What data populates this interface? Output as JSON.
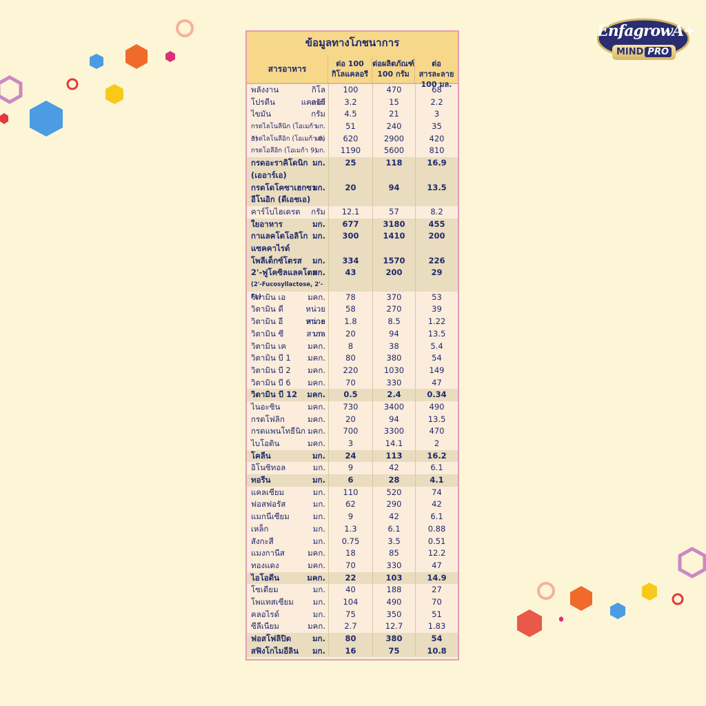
{
  "brand": {
    "logo_main": "EnfagrowA+",
    "logo_mind": "MIND",
    "logo_pro": "PRO"
  },
  "colors": {
    "background": "#fcf5d6",
    "table_header": "#f7d88a",
    "table_border": "#e79bb4",
    "text": "#1f2a6b"
  },
  "table": {
    "title": "ข้อมูลทางโภชนาการ",
    "headers": {
      "col0": "สารอาหาร",
      "col1_line1": "ต่อ 100",
      "col1_line2": "กิโลแคลอรี",
      "col2_line1": "ต่อผลิตภัณฑ์",
      "col2_line2": "100 กรัม",
      "col3_line1": "ต่อสารละลาย",
      "col3_line2": "100 มล."
    },
    "rows": [
      {
        "name": "พลังงาน",
        "unit": "กิโลแคลอรี",
        "v1": "100",
        "v2": "470",
        "v3": "68",
        "bold": false
      },
      {
        "name": "โปรตีน",
        "unit": "กรัม",
        "v1": "3.2",
        "v2": "15",
        "v3": "2.2",
        "bold": false
      },
      {
        "name": "ไขมัน",
        "unit": "กรัม",
        "v1": "4.5",
        "v2": "21",
        "v3": "3",
        "bold": false
      },
      {
        "name": "กรดไลโนลีนิก (โอเมก้า 3)",
        "unit": "มก.",
        "v1": "51",
        "v2": "240",
        "v3": "35",
        "bold": false,
        "small": true
      },
      {
        "name": "กรดไลโนลีอิก (โอเมก้า 6)",
        "unit": "มก.",
        "v1": "620",
        "v2": "2900",
        "v3": "420",
        "bold": false,
        "small": true
      },
      {
        "name": "กรดโอลีอิก (โอเมก้า 9)",
        "unit": "มก.",
        "v1": "1190",
        "v2": "5600",
        "v3": "810",
        "bold": false,
        "small": true
      },
      {
        "name": "กรดอะราคิโดนิก",
        "name2": "(เออาร์เอ)",
        "unit": "มก.",
        "v1": "25",
        "v2": "118",
        "v3": "16.9",
        "bold": true
      },
      {
        "name": "กรดโดโคซาเฮกซา",
        "name2": "อีโนอิก (ดีเอชเอ)",
        "unit": "มก.",
        "v1": "20",
        "v2": "94",
        "v3": "13.5",
        "bold": true
      },
      {
        "name": "คาร์โบไฮเดรต",
        "unit": "กรัม",
        "v1": "12.1",
        "v2": "57",
        "v3": "8.2",
        "bold": false
      },
      {
        "name": "ใยอาหาร",
        "unit": "มก.",
        "v1": "677",
        "v2": "3180",
        "v3": "455",
        "bold": true
      },
      {
        "name": "กาแลคโตโอลิโก",
        "name2": "แซคคาไรด์",
        "unit": "มก.",
        "v1": "300",
        "v2": "1410",
        "v3": "200",
        "bold": true
      },
      {
        "name": "โพลีเด็กซ์โตรส",
        "unit": "มก.",
        "v1": "334",
        "v2": "1570",
        "v3": "226",
        "bold": true
      },
      {
        "name": "2'-ฟูโคซิลแลคโตส",
        "name2": "(2'-Fucosyllactose, 2'-FL)",
        "unit": "มก.",
        "v1": "43",
        "v2": "200",
        "v3": "29",
        "bold": true
      },
      {
        "name": "วิตามิน เอ",
        "unit": "มคก.",
        "v1": "78",
        "v2": "370",
        "v3": "53",
        "bold": false
      },
      {
        "name": "วิตามิน ดี",
        "unit": "หน่วยสากล",
        "v1": "58",
        "v2": "270",
        "v3": "39",
        "bold": false
      },
      {
        "name": "วิตามิน อี",
        "unit": "หน่วยสากล",
        "v1": "1.8",
        "v2": "8.5",
        "v3": "1.22",
        "bold": false
      },
      {
        "name": "วิตามิน ซี",
        "unit": "มก.",
        "v1": "20",
        "v2": "94",
        "v3": "13.5",
        "bold": false
      },
      {
        "name": "วิตามิน เค",
        "unit": "มคก.",
        "v1": "8",
        "v2": "38",
        "v3": "5.4",
        "bold": false
      },
      {
        "name": "วิตามิน บี 1",
        "unit": "มคก.",
        "v1": "80",
        "v2": "380",
        "v3": "54",
        "bold": false
      },
      {
        "name": "วิตามิน บี 2",
        "unit": "มคก.",
        "v1": "220",
        "v2": "1030",
        "v3": "149",
        "bold": false
      },
      {
        "name": "วิตามิน บี 6",
        "unit": "มคก.",
        "v1": "70",
        "v2": "330",
        "v3": "47",
        "bold": false
      },
      {
        "name": "วิตามิน บี 12",
        "unit": "มคก.",
        "v1": "0.5",
        "v2": "2.4",
        "v3": "0.34",
        "bold": true
      },
      {
        "name": "ไนอะซิน",
        "unit": "มคก.",
        "v1": "730",
        "v2": "3400",
        "v3": "490",
        "bold": false
      },
      {
        "name": "กรดโฟลิก",
        "unit": "มคก.",
        "v1": "20",
        "v2": "94",
        "v3": "13.5",
        "bold": false
      },
      {
        "name": "กรดแพนโทธีนิก",
        "unit": "มคก.",
        "v1": "700",
        "v2": "3300",
        "v3": "470",
        "bold": false
      },
      {
        "name": "ไบโอติน",
        "unit": "มคก.",
        "v1": "3",
        "v2": "14.1",
        "v3": "2",
        "bold": false
      },
      {
        "name": "โคลีน",
        "unit": "มก.",
        "v1": "24",
        "v2": "113",
        "v3": "16.2",
        "bold": true
      },
      {
        "name": "อิโนซิทอล",
        "unit": "มก.",
        "v1": "9",
        "v2": "42",
        "v3": "6.1",
        "bold": false
      },
      {
        "name": "ทอรีน",
        "unit": "มก.",
        "v1": "6",
        "v2": "28",
        "v3": "4.1",
        "bold": true
      },
      {
        "name": "แคลเซียม",
        "unit": "มก.",
        "v1": "110",
        "v2": "520",
        "v3": "74",
        "bold": false
      },
      {
        "name": "ฟอสฟอรัส",
        "unit": "มก.",
        "v1": "62",
        "v2": "290",
        "v3": "42",
        "bold": false
      },
      {
        "name": "แมกนีเซียม",
        "unit": "มก.",
        "v1": "9",
        "v2": "42",
        "v3": "6.1",
        "bold": false
      },
      {
        "name": "เหล็ก",
        "unit": "มก.",
        "v1": "1.3",
        "v2": "6.1",
        "v3": "0.88",
        "bold": false
      },
      {
        "name": "สังกะสี",
        "unit": "มก.",
        "v1": "0.75",
        "v2": "3.5",
        "v3": "0.51",
        "bold": false
      },
      {
        "name": "แมงกานีส",
        "unit": "มคก.",
        "v1": "18",
        "v2": "85",
        "v3": "12.2",
        "bold": false
      },
      {
        "name": "ทองแดง",
        "unit": "มคก.",
        "v1": "70",
        "v2": "330",
        "v3": "47",
        "bold": false
      },
      {
        "name": "ไอโอดีน",
        "unit": "มคก.",
        "v1": "22",
        "v2": "103",
        "v3": "14.9",
        "bold": true
      },
      {
        "name": "โซเดียม",
        "unit": "มก.",
        "v1": "40",
        "v2": "188",
        "v3": "27",
        "bold": false
      },
      {
        "name": "โพแทสเซียม",
        "unit": "มก.",
        "v1": "104",
        "v2": "490",
        "v3": "70",
        "bold": false
      },
      {
        "name": "คลอไรด์",
        "unit": "มก.",
        "v1": "75",
        "v2": "350",
        "v3": "51",
        "bold": false
      },
      {
        "name": "ซีลีเนียม",
        "unit": "มคก.",
        "v1": "2.7",
        "v2": "12.7",
        "v3": "1.83",
        "bold": false
      },
      {
        "name": "ฟอสโฟลิปิด",
        "unit": "มก.",
        "v1": "80",
        "v2": "380",
        "v3": "54",
        "bold": true
      },
      {
        "name": "สฟิงโกไมอีลิน",
        "unit": "มก.",
        "v1": "16",
        "v2": "75",
        "v3": "10.8",
        "bold": true
      }
    ]
  }
}
